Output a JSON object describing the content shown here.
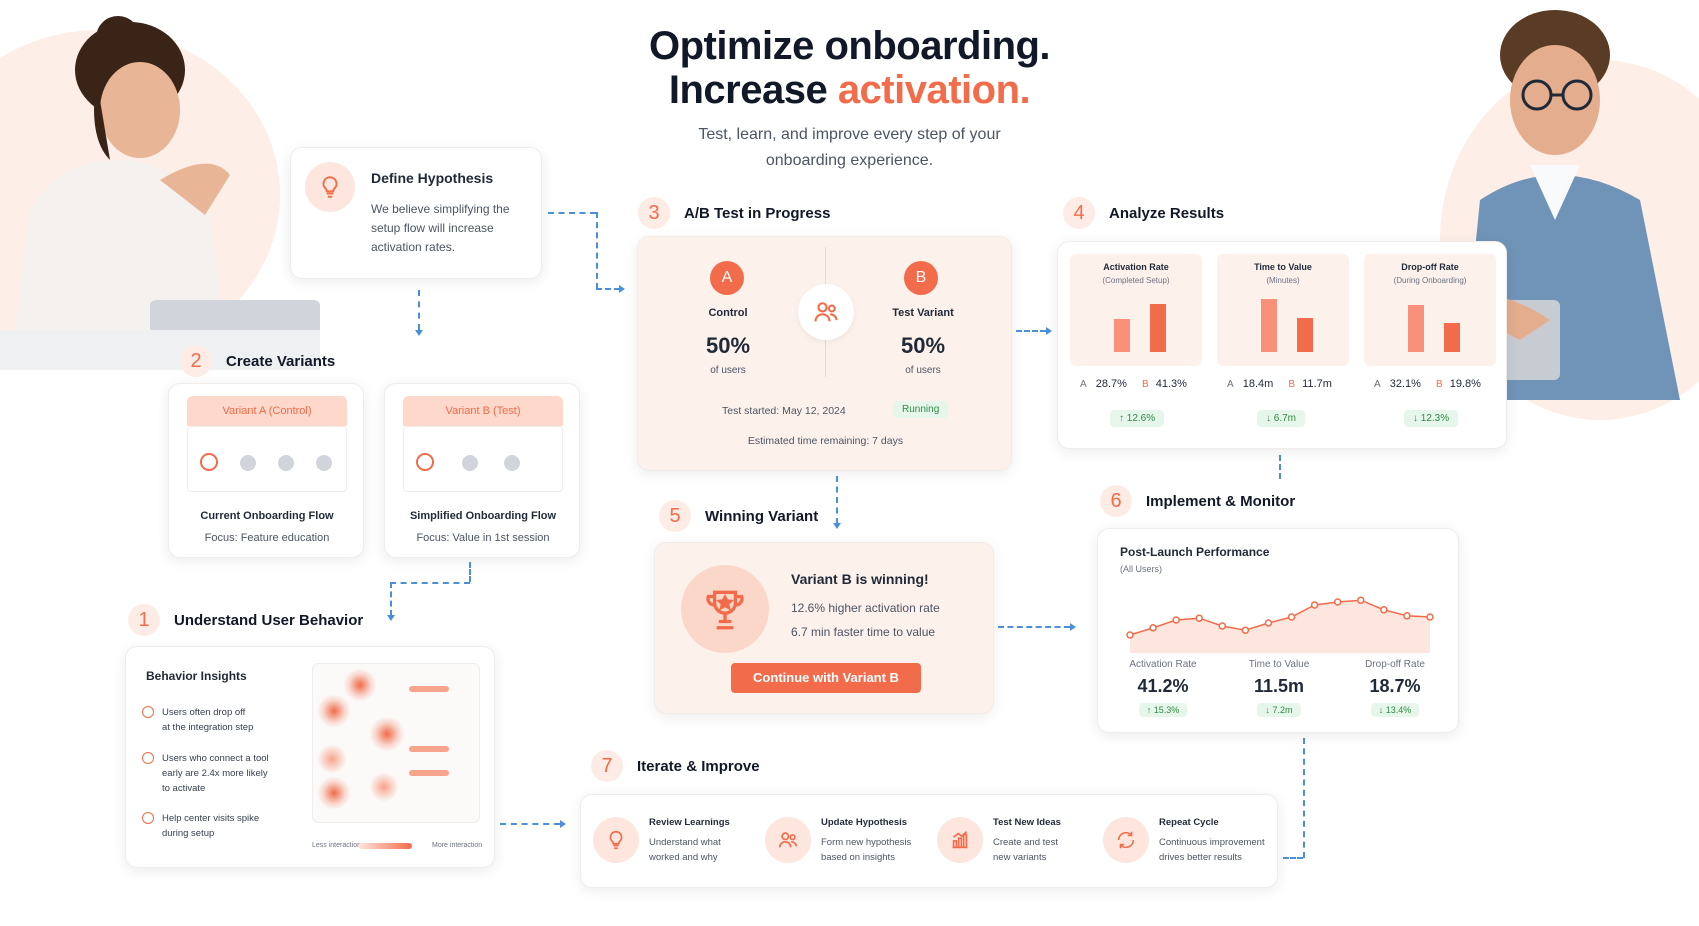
{
  "header": {
    "title_line1": "Optimize onboarding.",
    "title_line2_pre": "Increase ",
    "title_line2_accent": "activation.",
    "subtitle_line1": "Test, learn, and improve every step of your",
    "subtitle_line2": "onboarding experience."
  },
  "colors": {
    "accent": "#f26b4a",
    "accent_soft": "#fde6de",
    "connector": "#4a90d9",
    "positive": "#2f8a46"
  },
  "hypothesis": {
    "icon": "lightbulb-icon",
    "title": "Define Hypothesis",
    "line1": "We believe simplifying the",
    "line2": "setup flow will increase",
    "line3": "activation rates."
  },
  "step2": {
    "number": "2",
    "label": "Create Variants",
    "variant_a": {
      "tag": "Variant A (Control)",
      "name": "Current Onboarding Flow",
      "focus": "Focus: Feature education"
    },
    "variant_b": {
      "tag": "Variant B (Test)",
      "name": "Simplified Onboarding Flow",
      "focus": "Focus: Value in 1st session"
    }
  },
  "step1": {
    "number": "1",
    "label": "Understand User Behavior",
    "card_title": "Behavior Insights",
    "insights": [
      {
        "icon": "alert-icon",
        "line1": "Users often drop off",
        "line2": "at the integration step",
        "line3": ""
      },
      {
        "icon": "target-icon",
        "line1": "Users who connect a tool",
        "line2": "early are 2.4x more likely",
        "line3": "to activate"
      },
      {
        "icon": "chat-icon",
        "line1": "Help center visits spike",
        "line2": "during setup",
        "line3": ""
      }
    ],
    "legend_low": "Less interaction",
    "legend_high": "More interaction"
  },
  "step3": {
    "number": "3",
    "label": "A/B Test in Progress",
    "a": {
      "badge": "A",
      "name": "Control",
      "value": "50%",
      "unit": "of users"
    },
    "b": {
      "badge": "B",
      "name": "Test Variant",
      "value": "50%",
      "unit": "of users"
    },
    "started": "Test started: May 12, 2024",
    "status": "Running",
    "remaining": "Estimated time remaining: 7 days"
  },
  "step4": {
    "number": "4",
    "label": "Analyze Results",
    "metrics": [
      {
        "title": "Activation Rate",
        "sub": "(Completed Setup)",
        "a_label": "A",
        "a": "28.7%",
        "b_label": "B",
        "b": "41.3%",
        "delta": "↑ 12.6%",
        "a_val": 28.7,
        "b_val": 41.3,
        "max": 50
      },
      {
        "title": "Time to Value",
        "sub": "(Minutes)",
        "a_label": "A",
        "a": "18.4m",
        "b_label": "B",
        "b": "11.7m",
        "delta": "↓ 6.7m",
        "a_val": 18.4,
        "b_val": 11.7,
        "max": 20
      },
      {
        "title": "Drop-off Rate",
        "sub": "(During Onboarding)",
        "a_label": "A",
        "a": "32.1%",
        "b_label": "B",
        "b": "19.8%",
        "delta": "↓ 12.3%",
        "a_val": 32.1,
        "b_val": 19.8,
        "max": 40
      }
    ]
  },
  "step5": {
    "number": "5",
    "label": "Winning Variant",
    "headline": "Variant B is winning!",
    "line1": "12.6% higher activation rate",
    "line2": "6.7 min faster time to value",
    "cta": "Continue with Variant B"
  },
  "step6": {
    "number": "6",
    "label": "Implement & Monitor",
    "card_title": "Post-Launch Performance",
    "card_sub": "(All Users)",
    "trend": [
      0.3,
      0.42,
      0.55,
      0.58,
      0.45,
      0.38,
      0.5,
      0.6,
      0.8,
      0.85,
      0.88,
      0.72,
      0.62,
      0.6
    ],
    "stats": [
      {
        "label": "Activation Rate",
        "value": "41.2%",
        "delta": "↑ 15.3%"
      },
      {
        "label": "Time to Value",
        "value": "11.5m",
        "delta": "↓ 7.2m"
      },
      {
        "label": "Drop-off Rate",
        "value": "18.7%",
        "delta": "↓ 13.4%"
      }
    ]
  },
  "step7": {
    "number": "7",
    "label": "Iterate & Improve",
    "items": [
      {
        "icon": "lightbulb-icon",
        "title": "Review Learnings",
        "line1": "Understand what",
        "line2": "worked and why"
      },
      {
        "icon": "users-icon",
        "title": "Update Hypothesis",
        "line1": "Form new hypothesis",
        "line2": "based on insights"
      },
      {
        "icon": "growth-chart-icon",
        "title": "Test New Ideas",
        "line1": "Create and test",
        "line2": "new variants"
      },
      {
        "icon": "refresh-icon",
        "title": "Repeat Cycle",
        "line1": "Continuous improvement",
        "line2": "drives better results"
      }
    ]
  }
}
